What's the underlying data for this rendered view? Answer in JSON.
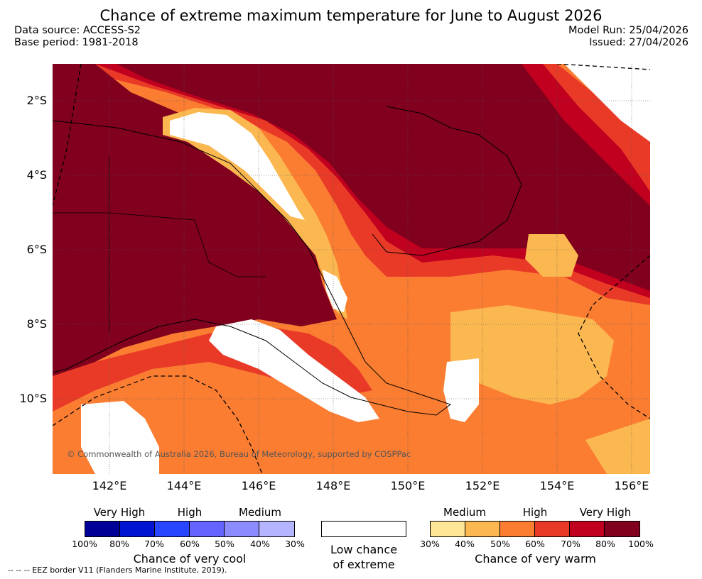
{
  "header": {
    "title": "Chance of extreme maximum temperature for June to August 2026",
    "data_source": "Data source: ACCESS-S2",
    "base_period": "Base period: 1981-2018",
    "model_run": "Model Run: 25/04/2026",
    "issued": "Issued: 27/04/2026"
  },
  "map": {
    "lat_labels": [
      "2°S",
      "4°S",
      "6°S",
      "8°S",
      "10°S"
    ],
    "lon_labels": [
      "142°E",
      "144°E",
      "146°E",
      "148°E",
      "150°E",
      "152°E",
      "154°E",
      "156°E"
    ],
    "copyright": "© Commonwealth of Australia 2026, Bureau of Meteorology, supported by COSPPac"
  },
  "legend": {
    "cool": {
      "levels": [
        "Very High",
        "High",
        "Medium"
      ],
      "colors": [
        "#000096",
        "#0014d2",
        "#2846ff",
        "#6464ff",
        "#8c8cff",
        "#b4b4ff"
      ],
      "ticks": [
        "100%",
        "80%",
        "70%",
        "60%",
        "50%",
        "40%",
        "30%"
      ],
      "caption": "Chance of very cool"
    },
    "neutral": {
      "color": "#ffffff",
      "caption_line1": "Low chance",
      "caption_line2": "of extreme"
    },
    "warm": {
      "levels": [
        "Medium",
        "High",
        "Very High"
      ],
      "colors": [
        "#ffe696",
        "#fcb850",
        "#fa7d32",
        "#e93a28",
        "#c0001e",
        "#80001e"
      ],
      "ticks": [
        "30%",
        "40%",
        "50%",
        "60%",
        "70%",
        "80%",
        "100%"
      ],
      "caption": "Chance of very warm"
    }
  },
  "footnote": "-- -- -- EEZ border V11 (Flanders Marine Institute, 2019)."
}
